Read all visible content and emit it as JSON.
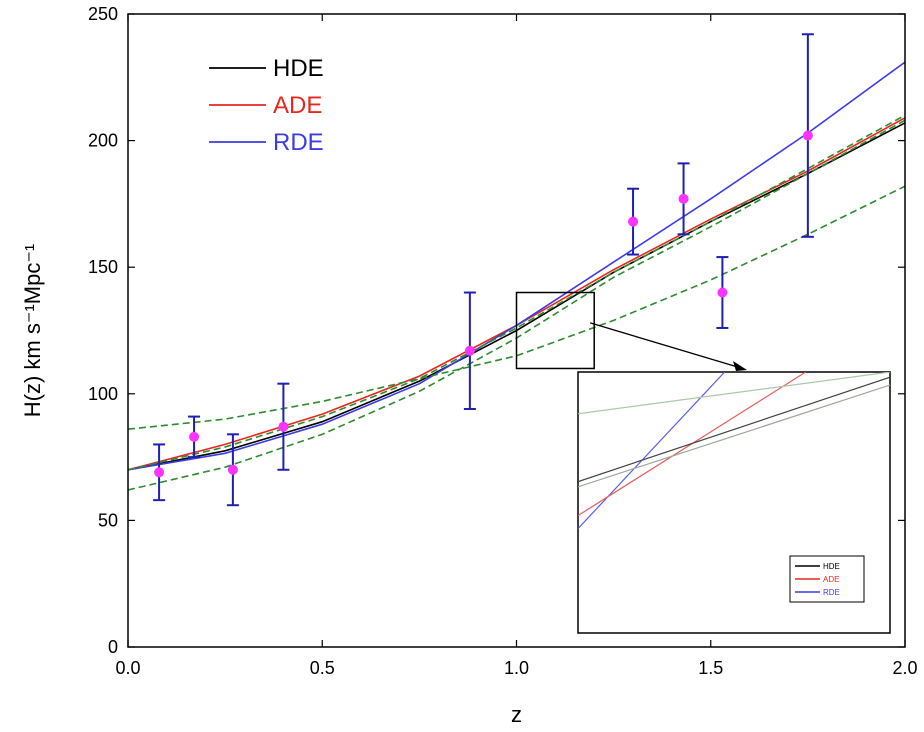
{
  "chart_data": {
    "type": "line",
    "title": "",
    "xlabel": "z",
    "ylabel": "H(z) km s⁻¹Mpc⁻¹",
    "xlim": [
      0.0,
      2.0
    ],
    "ylim": [
      0,
      250
    ],
    "x_ticks": [
      "0.0",
      "0.5",
      "1.0",
      "1.5",
      "2.0"
    ],
    "y_ticks": [
      "0",
      "50",
      "100",
      "150",
      "200",
      "250"
    ],
    "legend": {
      "placement": "top-left",
      "entries": [
        {
          "label": "HDE",
          "color": "#000000"
        },
        {
          "label": "ADE",
          "color": "#e8281e"
        },
        {
          "label": "RDE",
          "color": "#3c3ce6"
        }
      ]
    },
    "series": [
      {
        "name": "HDE",
        "color": "#000000",
        "style": "solid",
        "x": [
          0,
          0.25,
          0.5,
          0.75,
          1.0,
          1.25,
          1.5,
          1.75,
          2.0
        ],
        "y": [
          70,
          77.5,
          89,
          105,
          125,
          148,
          168,
          187,
          207
        ]
      },
      {
        "name": "ADE",
        "color": "#e8281e",
        "style": "solid",
        "x": [
          0,
          0.25,
          0.5,
          0.75,
          1.0,
          1.25,
          1.5,
          1.75,
          2.0
        ],
        "y": [
          70,
          80,
          92,
          107,
          127,
          149,
          169,
          188,
          209
        ]
      },
      {
        "name": "RDE",
        "color": "#3c3ce6",
        "style": "solid",
        "x": [
          0,
          0.25,
          0.5,
          0.75,
          1.0,
          1.25,
          1.5,
          1.75,
          2.0
        ],
        "y": [
          70,
          76.5,
          88,
          104,
          127,
          152,
          177,
          203,
          231
        ]
      },
      {
        "color": "#2e8b2e",
        "style": "dashed",
        "x": [
          0,
          0.25,
          0.5,
          0.75,
          1.0,
          1.25,
          1.5,
          1.75,
          2.0
        ],
        "y": [
          70,
          79,
          91,
          106,
          126,
          148,
          168,
          189,
          210
        ]
      },
      {
        "color": "#2e8b2e",
        "style": "dashed",
        "x": [
          0,
          0.25,
          0.5,
          0.75,
          1.0,
          1.25,
          1.5,
          1.75,
          2.0
        ],
        "y": [
          86,
          90,
          97,
          106,
          115,
          129,
          145,
          163,
          182
        ]
      },
      {
        "color": "#2e8b2e",
        "style": "dashed",
        "x": [
          0,
          0.25,
          0.5,
          0.75,
          1.0,
          1.25,
          1.5,
          1.75,
          2.0
        ],
        "y": [
          62,
          71,
          84,
          101,
          122,
          146,
          166,
          187,
          208
        ]
      }
    ],
    "observations": {
      "marker_color": "#ff33ff",
      "errorbar_color": "#1f1fb4",
      "points": [
        {
          "x": 0.08,
          "y": 69.0,
          "err": 11.0
        },
        {
          "x": 0.17,
          "y": 83.0,
          "err": 8.0
        },
        {
          "x": 0.27,
          "y": 70.0,
          "err": 14.0
        },
        {
          "x": 0.4,
          "y": 87.0,
          "err": 17.0
        },
        {
          "x": 0.88,
          "y": 117.0,
          "err": 23.0
        },
        {
          "x": 1.3,
          "y": 168.0,
          "err": 13.0
        },
        {
          "x": 1.43,
          "y": 177.0,
          "err": 14.0
        },
        {
          "x": 1.53,
          "y": 140.0,
          "err": 14.0
        },
        {
          "x": 1.75,
          "y": 202.0,
          "err": 40.0
        }
      ]
    },
    "zoom_region": {
      "xlim": [
        1.0,
        1.2
      ],
      "ylim": [
        110,
        140
      ]
    },
    "inset": {
      "legend_entries": [
        {
          "label": "HDE",
          "color": "#000000"
        },
        {
          "label": "ADE",
          "color": "#e8281e"
        },
        {
          "label": "RDE",
          "color": "#3c3ce6"
        }
      ],
      "lines": [
        {
          "color": "#5c5ce8",
          "x": [
            0,
            0.47
          ],
          "y": [
            0.4,
            1.0
          ]
        },
        {
          "color": "#e85c5c",
          "x": [
            0,
            0.73
          ],
          "y": [
            0.45,
            1.0
          ]
        },
        {
          "color": "#9aa89a",
          "x": [
            0,
            1.0
          ],
          "y": [
            0.56,
            0.95
          ]
        },
        {
          "color": "#404040",
          "x": [
            0,
            1.0
          ],
          "y": [
            0.58,
            0.98
          ]
        },
        {
          "color": "#aac8aa",
          "x": [
            0,
            1.0
          ],
          "y": [
            0.84,
            1.0
          ]
        }
      ]
    }
  }
}
